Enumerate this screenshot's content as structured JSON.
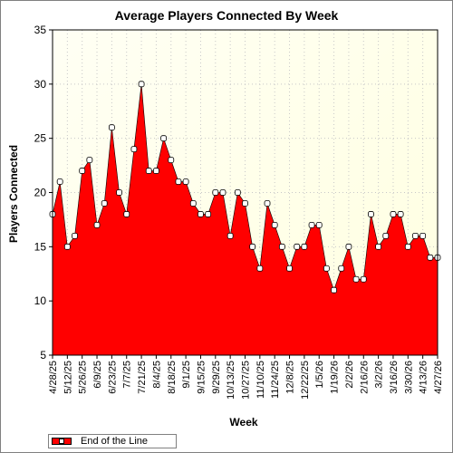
{
  "chart_data": {
    "type": "area",
    "title": "Average Players Connected By Week",
    "xlabel": "Week",
    "ylabel": "Players Connected",
    "ylim": [
      5,
      35
    ],
    "yticks": [
      5,
      10,
      15,
      20,
      25,
      30,
      35
    ],
    "grid": "dotted",
    "legend_position": "bottom-left",
    "colors": {
      "fill": "#ff0000",
      "plot_background": "#ffffe0",
      "marker": "#ffffff"
    },
    "x": [
      "4/28/25",
      "5/5/25",
      "5/12/25",
      "5/19/25",
      "5/26/25",
      "6/2/25",
      "6/9/25",
      "6/16/25",
      "6/23/25",
      "6/30/25",
      "7/7/25",
      "7/14/25",
      "7/21/25",
      "7/28/25",
      "8/4/25",
      "8/11/25",
      "8/18/25",
      "8/25/25",
      "9/1/25",
      "9/8/25",
      "9/15/25",
      "9/22/25",
      "9/29/25",
      "10/6/25",
      "10/13/25",
      "10/20/25",
      "10/27/25",
      "11/3/25",
      "11/10/25",
      "11/17/25",
      "11/24/25",
      "12/1/25",
      "12/8/25",
      "12/15/25",
      "12/22/25",
      "12/29/25",
      "1/5/26",
      "1/12/26",
      "1/19/26",
      "1/26/26",
      "2/2/26",
      "2/9/26",
      "2/16/26",
      "2/23/26",
      "3/2/26",
      "3/9/26",
      "3/16/26",
      "3/23/26",
      "3/30/26",
      "4/6/26",
      "4/13/26",
      "4/20/26",
      "4/27/26"
    ],
    "x_tick_labels": [
      "4/28/25",
      "5/12/25",
      "5/26/25",
      "6/9/25",
      "6/23/25",
      "7/7/25",
      "7/21/25",
      "8/4/25",
      "8/18/25",
      "9/1/25",
      "9/15/25",
      "9/29/25",
      "10/13/25",
      "10/27/25",
      "11/10/25",
      "11/24/25",
      "12/8/25",
      "12/22/25",
      "1/5/26",
      "1/19/26",
      "2/2/26",
      "2/16/26",
      "3/2/26",
      "3/16/26",
      "3/30/26",
      "4/13/26",
      "4/27/26"
    ],
    "series": [
      {
        "name": "End of the Line",
        "values": [
          18,
          21,
          15,
          16,
          22,
          23,
          17,
          19,
          26,
          20,
          18,
          24,
          30,
          22,
          22,
          25,
          23,
          21,
          21,
          19,
          18,
          18,
          20,
          20,
          16,
          20,
          19,
          15,
          13,
          19,
          17,
          15,
          13,
          15,
          15,
          17,
          17,
          13,
          11,
          13,
          15,
          12,
          12,
          18,
          15,
          16,
          18,
          18,
          15,
          16,
          16,
          14,
          14
        ]
      }
    ]
  }
}
